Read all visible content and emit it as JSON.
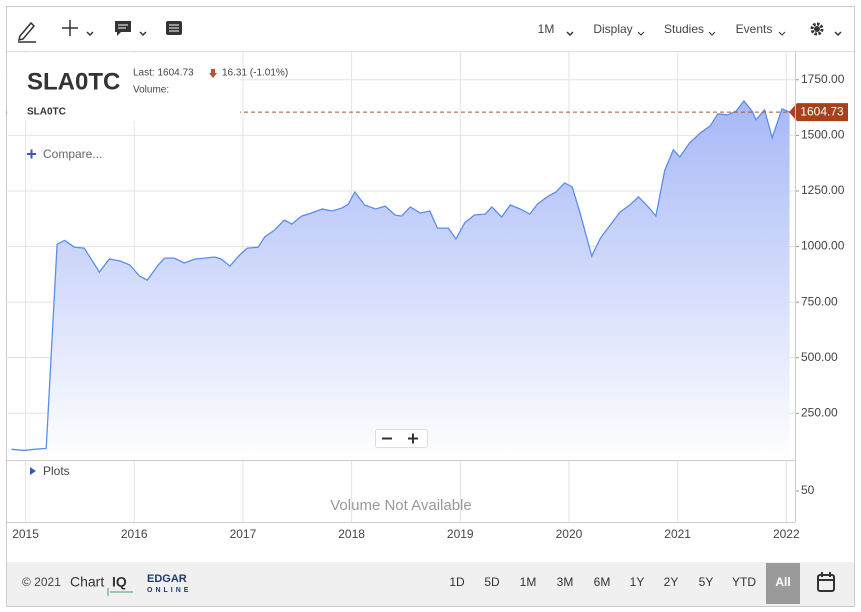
{
  "toolbar": {
    "periodicity": "1M",
    "menus": [
      "Display",
      "Studies",
      "Events"
    ]
  },
  "header": {
    "symbol": "SLA0TC",
    "last": "Last: 1604.73",
    "change": "16.31 (-1.01%)",
    "volume": "Volume:",
    "compare": "Compare..."
  },
  "panels": {
    "plots": "Plots",
    "volume_message": "Volume Not Available"
  },
  "chart_data": {
    "type": "area",
    "x": [
      2014.87,
      2014.99,
      2015.08,
      2015.19,
      2015.29,
      2015.36,
      2015.45,
      2015.54,
      2015.68,
      2015.77,
      2015.87,
      2015.96,
      2016.05,
      2016.12,
      2016.22,
      2016.28,
      2016.37,
      2016.46,
      2016.56,
      2016.65,
      2016.74,
      2016.8,
      2016.88,
      2016.97,
      2017.04,
      2017.14,
      2017.2,
      2017.29,
      2017.38,
      2017.45,
      2017.54,
      2017.63,
      2017.73,
      2017.82,
      2017.91,
      2017.97,
      2018.03,
      2018.12,
      2018.22,
      2018.31,
      2018.4,
      2018.46,
      2018.54,
      2018.63,
      2018.72,
      2018.79,
      2018.89,
      2018.96,
      2019.04,
      2019.13,
      2019.23,
      2019.29,
      2019.38,
      2019.46,
      2019.55,
      2019.64,
      2019.71,
      2019.81,
      2019.88,
      2019.96,
      2020.03,
      2020.1,
      2020.21,
      2020.29,
      2020.38,
      2020.47,
      2020.56,
      2020.64,
      2020.73,
      2020.8,
      2020.88,
      2020.96,
      2021.02,
      2021.11,
      2021.21,
      2021.3,
      2021.37,
      2021.46,
      2021.54,
      2021.61,
      2021.69,
      2021.72,
      2021.8,
      2021.87,
      2021.96,
      2022.03
    ],
    "series": [
      {
        "name": "SLA0TC",
        "color": "#5b8def",
        "values": [
          88,
          83,
          88,
          92,
          1010,
          1028,
          997,
          993,
          885,
          944,
          935,
          917,
          867,
          849,
          917,
          948,
          948,
          926,
          944,
          948,
          953,
          944,
          912,
          962,
          993,
          997,
          1043,
          1074,
          1119,
          1101,
          1137,
          1151,
          1169,
          1160,
          1173,
          1191,
          1245,
          1187,
          1169,
          1182,
          1142,
          1137,
          1178,
          1151,
          1160,
          1083,
          1083,
          1034,
          1106,
          1142,
          1146,
          1178,
          1133,
          1187,
          1169,
          1146,
          1191,
          1227,
          1245,
          1286,
          1268,
          1155,
          957,
          1038,
          1097,
          1155,
          1187,
          1223,
          1178,
          1137,
          1340,
          1435,
          1403,
          1466,
          1511,
          1543,
          1597,
          1592,
          1610,
          1655,
          1606,
          1570,
          1615,
          1489,
          1619,
          1604.73
        ]
      }
    ],
    "xlim": [
      2014.82,
      2022.08
    ],
    "xticks": [
      2015,
      2016,
      2017,
      2018,
      2019,
      2020,
      2021,
      2022
    ],
    "ylim": [
      40,
      1875
    ],
    "yticks": [
      {
        "value": 250,
        "label": "250.00"
      },
      {
        "value": 500,
        "label": "500.00"
      },
      {
        "value": 750,
        "label": "750.00"
      },
      {
        "value": 1000,
        "label": "1000.00"
      },
      {
        "value": 1250,
        "label": "1250.00"
      },
      {
        "value": 1500,
        "label": "1500.00"
      },
      {
        "value": 1750,
        "label": "1750.00"
      }
    ],
    "current_price": 1604.73,
    "grid": true,
    "volume_ylim": [
      0,
      100
    ],
    "volume_yticks": [
      50
    ]
  },
  "footer": {
    "copyright": "© 2021",
    "brand": "Chart",
    "brand_mark": "IQ",
    "partner": "EDGAR",
    "partner_sub": "ONLINE",
    "ranges": [
      "1D",
      "5D",
      "1M",
      "3M",
      "6M",
      "1Y",
      "2Y",
      "5Y",
      "YTD",
      "All"
    ],
    "selected_range": 9
  }
}
